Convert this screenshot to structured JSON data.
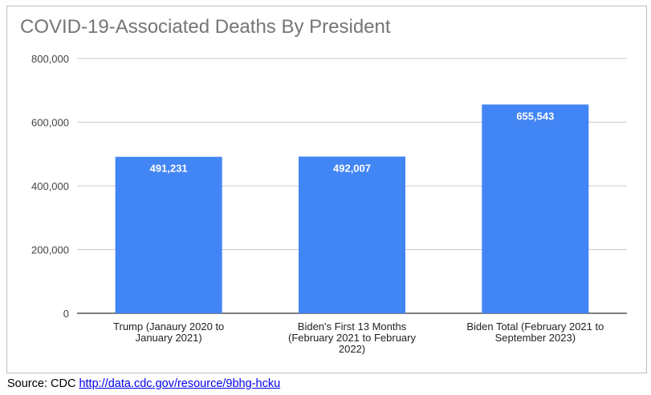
{
  "chart_data": {
    "type": "bar",
    "title": "COVID-19-Associated Deaths By President",
    "categories": [
      [
        "Trump (Janaury 2020 to",
        "January 2021)"
      ],
      [
        "Biden's First 13 Months",
        "(February 2021 to February",
        "2022)"
      ],
      [
        "Biden Total (February 2021 to",
        "September 2023)"
      ]
    ],
    "values": [
      491231,
      492007,
      655543
    ],
    "data_labels": [
      "491,231",
      "492,007",
      "655,543"
    ],
    "ylim": [
      0,
      800000
    ],
    "yticks": [
      0,
      200000,
      400000,
      600000,
      800000
    ],
    "ytick_labels": [
      "0",
      "200,000",
      "400,000",
      "600,000",
      "800,000"
    ],
    "grid": true,
    "legend": "none",
    "bar_color": "#4285f4",
    "xlabel": "",
    "ylabel": ""
  },
  "source": {
    "prefix": "Source: CDC",
    "link_text": "http://data.cdc.gov/resource/9bhg-hcku"
  }
}
